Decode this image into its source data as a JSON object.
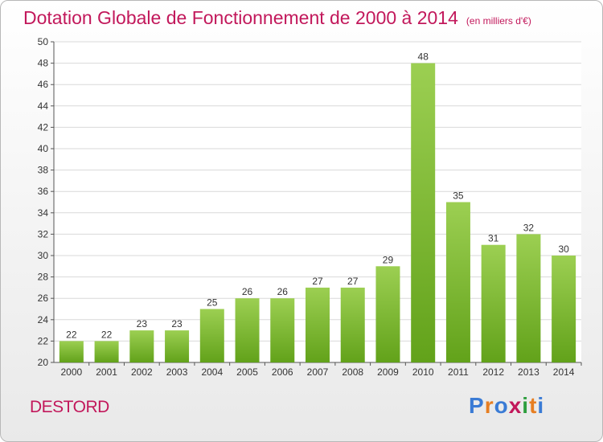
{
  "title": "Dotation Globale de Fonctionnement de 2000 à 2014",
  "subtitle": "(en milliers d'€)",
  "commune": "DESTORD",
  "logo": {
    "text": "Proxiti",
    "letter_colors": [
      "#3a7bd5",
      "#e67e22",
      "#3a7bd5",
      "#c2185b",
      "#2e9e3e",
      "#e67e22",
      "#3a7bd5"
    ]
  },
  "colors": {
    "bar_top": "#9ccf52",
    "bar_bottom": "#62a21a",
    "title": "#c2185b",
    "grid": "#d9d9d9",
    "axis": "#555555"
  },
  "chart_data": {
    "type": "bar",
    "categories": [
      "2000",
      "2001",
      "2002",
      "2003",
      "2004",
      "2005",
      "2006",
      "2007",
      "2008",
      "2009",
      "2010",
      "2011",
      "2012",
      "2013",
      "2014"
    ],
    "values": [
      22,
      22,
      23,
      23,
      25,
      26,
      26,
      27,
      27,
      29,
      48,
      35,
      31,
      32,
      30
    ],
    "ylim": [
      20,
      50
    ],
    "ytick_step": 2,
    "grid": true,
    "data_labels": true
  }
}
